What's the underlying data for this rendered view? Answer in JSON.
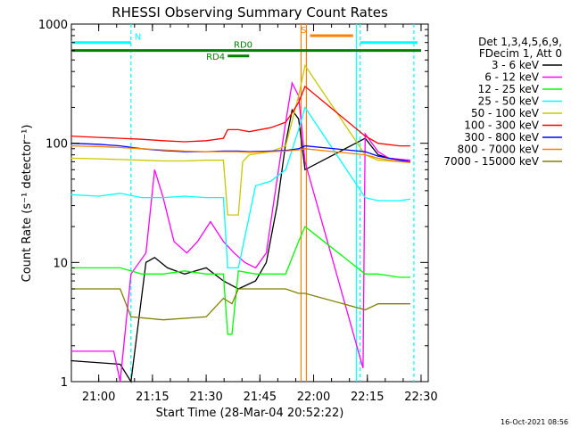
{
  "chart_data": {
    "type": "line",
    "title": "RHESSI Observing Summary Count Rates",
    "xlabel": "Start Time (28-Mar-04 20:52:22)",
    "ylabel": "Count Rate (s⁻¹ detector⁻¹)",
    "yscale": "log",
    "ylim": [
      1,
      1000
    ],
    "xlim": [
      "20:52:22",
      "22:32:00"
    ],
    "x_ticks": [
      "21:00",
      "21:15",
      "21:30",
      "21:45",
      "22:00",
      "22:15",
      "22:30"
    ],
    "y_ticks": [
      "1",
      "10",
      "100",
      "1000"
    ],
    "timestamp": "16-Oct-2021 08:56",
    "legend_header": [
      "Det 1,3,4,5,6,9,",
      "FDecim 1, Att 0"
    ],
    "legend_position": "right",
    "annotations": [
      {
        "label": "N",
        "color": "#00ffff",
        "segments": [
          [
            "20:52",
            "21:09"
          ],
          [
            "22:13",
            "22:29"
          ]
        ],
        "level": 700
      },
      {
        "label": "S",
        "color": "#ff8000",
        "segments": [
          [
            "21:59",
            "22:11"
          ]
        ],
        "level": 800
      },
      {
        "label": "RD0",
        "color": "#008000",
        "segments": [
          [
            "20:52",
            "22:30"
          ]
        ],
        "level": 600
      },
      {
        "label": "RD4",
        "color": "#008000",
        "segments": [
          [
            "21:36",
            "21:42"
          ]
        ],
        "level": 540
      }
    ],
    "vlines": [
      {
        "time": "21:09",
        "color": "#00ffff",
        "style": "dashed"
      },
      {
        "time": "21:56:30",
        "color": "#ff8000",
        "style": "solid"
      },
      {
        "time": "21:58",
        "color": "#ff8000",
        "style": "solid"
      },
      {
        "time": "22:12",
        "color": "#00ffff",
        "style": "solid"
      },
      {
        "time": "22:13",
        "color": "#00ffff",
        "style": "dashed"
      },
      {
        "time": "22:28",
        "color": "#00ffff",
        "style": "dashed"
      }
    ],
    "series": [
      {
        "name": "3 - 6 keV",
        "color": "#000000",
        "x": [
          20.87,
          21.1,
          21.15,
          21.22,
          21.26,
          21.32,
          21.4,
          21.5,
          21.58,
          21.65,
          21.73,
          21.78,
          21.83,
          21.87,
          21.9,
          21.93,
          21.96,
          22.24,
          22.3,
          22.35,
          22.45
        ],
        "y": [
          1.5,
          1.4,
          1.0,
          10,
          11,
          9,
          8,
          9,
          7,
          6,
          7,
          10,
          30,
          100,
          190,
          160,
          60,
          110,
          80,
          75,
          70
        ]
      },
      {
        "name": "6 - 12 keV",
        "color": "#ff00ff",
        "x": [
          20.87,
          21.07,
          21.1,
          21.15,
          21.22,
          21.26,
          21.3,
          21.35,
          21.41,
          21.46,
          21.52,
          21.58,
          21.63,
          21.68,
          21.73,
          21.78,
          21.83,
          21.87,
          21.9,
          21.93,
          21.96,
          22.23,
          22.24,
          22.3,
          22.35,
          22.45
        ],
        "y": [
          1.8,
          1.8,
          1.0,
          8,
          12,
          60,
          35,
          15,
          12,
          15,
          22,
          15,
          12,
          10,
          9,
          12,
          50,
          150,
          320,
          250,
          70,
          1.3,
          120,
          85,
          75,
          72
        ]
      },
      {
        "name": "12 - 25 keV",
        "color": "#00ff00",
        "x": [
          20.87,
          21.0,
          21.1,
          21.15,
          21.2,
          21.3,
          21.4,
          21.5,
          21.58,
          21.6,
          21.62,
          21.65,
          21.73,
          21.8,
          21.87,
          21.93,
          21.96,
          22.24,
          22.3,
          22.4,
          22.45
        ],
        "y": [
          9,
          9,
          9,
          8.5,
          8,
          8,
          8.5,
          8,
          8,
          2.5,
          2.5,
          8.5,
          8,
          8,
          8,
          15,
          20,
          8,
          8,
          7.5,
          7.5
        ]
      },
      {
        "name": "25 - 50 keV",
        "color": "#00ffff",
        "x": [
          20.87,
          21.0,
          21.1,
          21.2,
          21.3,
          21.4,
          21.5,
          21.58,
          21.6,
          21.65,
          21.73,
          21.8,
          21.87,
          21.93,
          21.96,
          22.24,
          22.3,
          22.4,
          22.45
        ],
        "y": [
          37,
          36,
          38,
          35,
          35,
          36,
          35,
          35,
          9,
          9,
          44,
          48,
          60,
          130,
          200,
          35,
          33,
          33,
          34
        ]
      },
      {
        "name": "50 - 100 keV",
        "color": "#c8c800",
        "x": [
          20.87,
          21.0,
          21.1,
          21.2,
          21.3,
          21.4,
          21.5,
          21.58,
          21.6,
          21.65,
          21.67,
          21.7,
          21.8,
          21.87,
          21.93,
          21.96,
          22.24,
          22.3,
          22.4,
          22.45
        ],
        "y": [
          75,
          74,
          73,
          72,
          71,
          71,
          72,
          72,
          25,
          25,
          70,
          80,
          85,
          95,
          250,
          450,
          80,
          72,
          70,
          70
        ]
      },
      {
        "name": "100 - 300 keV",
        "color": "#ff0000",
        "x": [
          20.87,
          21.0,
          21.1,
          21.2,
          21.3,
          21.4,
          21.5,
          21.58,
          21.6,
          21.65,
          21.7,
          21.8,
          21.87,
          21.9,
          21.93,
          21.96,
          22.24,
          22.3,
          22.4,
          22.45
        ],
        "y": [
          115,
          112,
          110,
          108,
          105,
          103,
          105,
          110,
          130,
          130,
          125,
          135,
          150,
          180,
          220,
          300,
          115,
          100,
          95,
          95
        ]
      },
      {
        "name": "300 - 800 keV",
        "color": "#0000ff",
        "x": [
          20.87,
          21.0,
          21.1,
          21.2,
          21.3,
          21.4,
          21.5,
          21.58,
          21.65,
          21.7,
          21.8,
          21.87,
          21.93,
          21.96,
          22.24,
          22.3,
          22.4,
          22.45
        ],
        "y": [
          100,
          98,
          95,
          90,
          87,
          85,
          85,
          86,
          86,
          85,
          86,
          87,
          90,
          95,
          85,
          78,
          72,
          70
        ]
      },
      {
        "name": "800 - 7000 keV",
        "color": "#ff8000",
        "x": [
          20.87,
          21.0,
          21.1,
          21.2,
          21.3,
          21.4,
          21.5,
          21.58,
          21.65,
          21.7,
          21.8,
          21.87,
          21.93,
          21.96,
          22.24,
          22.3,
          22.4,
          22.45
        ],
        "y": [
          95,
          94,
          92,
          90,
          88,
          86,
          85,
          85,
          85,
          84,
          85,
          86,
          88,
          90,
          80,
          75,
          70,
          69
        ]
      },
      {
        "name": "7000 - 15000 keV",
        "color": "#808000",
        "x": [
          20.87,
          21.0,
          21.1,
          21.15,
          21.3,
          21.5,
          21.58,
          21.62,
          21.65,
          21.7,
          21.8,
          21.87,
          21.93,
          21.96,
          22.24,
          22.3,
          22.4,
          22.45
        ],
        "y": [
          6,
          6,
          6,
          3.5,
          3.3,
          3.5,
          5,
          4.5,
          6,
          6,
          6,
          6,
          5.5,
          5.5,
          4,
          4.5,
          4.5,
          4.5
        ]
      }
    ]
  }
}
